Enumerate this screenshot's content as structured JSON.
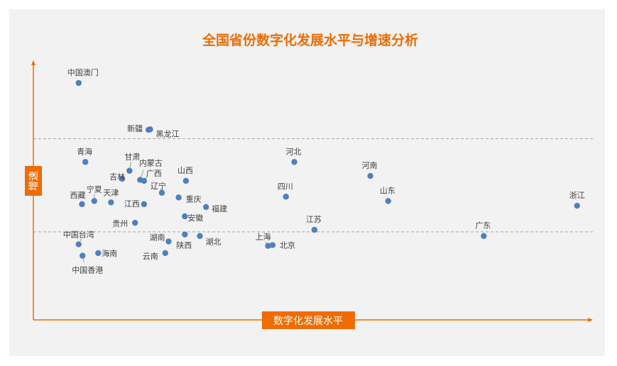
{
  "chart_data": {
    "type": "scatter",
    "title": "全国省份数字化发展水平与增速分析",
    "xlabel": "数字化发展水平",
    "ylabel": "增速",
    "colors": {
      "point": "#4f7fbf",
      "axis": "#ef6c00",
      "title": "#ef6c00",
      "reference": "#a6a6a6",
      "background": "#f2f2f2"
    },
    "grid": false,
    "legend": "none",
    "xlim": [
      0,
      100
    ],
    "ylim": [
      0,
      100
    ],
    "reference_lines_y": [
      70,
      34
    ],
    "points": [
      {
        "name": "中国澳门",
        "x": 8.1,
        "y": 91.5
      },
      {
        "name": "新疆",
        "x": 20.6,
        "y": 73.4
      },
      {
        "name": "黑龙江",
        "x": 20.9,
        "y": 73.6
      },
      {
        "name": "青海",
        "x": 9.3,
        "y": 61.0
      },
      {
        "name": "甘肃",
        "x": 17.2,
        "y": 57.6
      },
      {
        "name": "吉林",
        "x": 15.9,
        "y": 54.5
      },
      {
        "name": "内蒙古",
        "x": 19.1,
        "y": 54.1
      },
      {
        "name": "广西",
        "x": 19.8,
        "y": 53.7
      },
      {
        "name": "山西",
        "x": 27.3,
        "y": 53.7
      },
      {
        "name": "宁夏",
        "x": 10.9,
        "y": 45.9
      },
      {
        "name": "天津",
        "x": 13.9,
        "y": 45.4
      },
      {
        "name": "西藏",
        "x": 8.7,
        "y": 44.7
      },
      {
        "name": "辽宁",
        "x": 23.0,
        "y": 49.1
      },
      {
        "name": "重庆",
        "x": 26.0,
        "y": 47.3
      },
      {
        "name": "江西",
        "x": 19.8,
        "y": 44.7
      },
      {
        "name": "福建",
        "x": 30.9,
        "y": 43.6
      },
      {
        "name": "安徽",
        "x": 27.1,
        "y": 40.0
      },
      {
        "name": "贵州",
        "x": 18.2,
        "y": 37.5
      },
      {
        "name": "湖北",
        "x": 29.8,
        "y": 32.4
      },
      {
        "name": "陕西",
        "x": 27.1,
        "y": 33.0
      },
      {
        "name": "湖南",
        "x": 24.2,
        "y": 30.3
      },
      {
        "name": "中国台湾",
        "x": 8.1,
        "y": 29.2
      },
      {
        "name": "海南",
        "x": 11.6,
        "y": 25.8
      },
      {
        "name": "云南",
        "x": 23.6,
        "y": 25.8
      },
      {
        "name": "中国香港",
        "x": 8.8,
        "y": 24.8
      },
      {
        "name": "上海",
        "x": 42.0,
        "y": 28.6
      },
      {
        "name": "北京",
        "x": 42.8,
        "y": 28.9
      },
      {
        "name": "河北",
        "x": 46.7,
        "y": 61.0
      },
      {
        "name": "四川",
        "x": 45.2,
        "y": 47.6
      },
      {
        "name": "江苏",
        "x": 50.3,
        "y": 34.8
      },
      {
        "name": "河南",
        "x": 60.3,
        "y": 55.6
      },
      {
        "name": "山东",
        "x": 63.5,
        "y": 45.9
      },
      {
        "name": "广东",
        "x": 80.6,
        "y": 32.4
      },
      {
        "name": "浙江",
        "x": 97.3,
        "y": 44.1
      }
    ]
  }
}
